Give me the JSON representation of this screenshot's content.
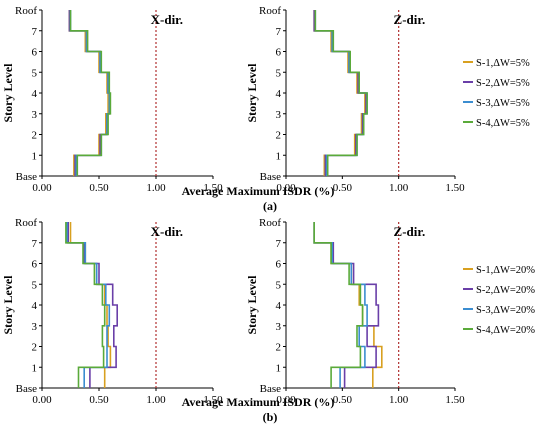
{
  "colors": {
    "S-1": "#d8a020",
    "S-2": "#6a3fa8",
    "S-3": "#3b8dd0",
    "S-4": "#5aaa3a",
    "limit": "#b03030"
  },
  "shared": {
    "xlabel": "Average Maximum ISDR (%)",
    "ylabel": "Story Level",
    "xticks": [
      "0.00",
      "0.50",
      "1.00",
      "1.50"
    ],
    "yticks": [
      "Base",
      "1",
      "2",
      "3",
      "4",
      "5",
      "6",
      "7",
      "Roof"
    ],
    "xlim": [
      0,
      1.5
    ],
    "ylim": [
      0,
      8
    ],
    "limit_x": 1.0
  },
  "panel_labels": {
    "a": "(a)",
    "b": "(b)"
  },
  "chart_data": [
    {
      "type": "line",
      "panel": "a",
      "direction": "X-dir.",
      "series": [
        {
          "name": "S-1,ΔW=5%",
          "values": [
            0.28,
            0.5,
            0.56,
            0.58,
            0.57,
            0.5,
            0.38,
            0.24
          ]
        },
        {
          "name": "S-2,ΔW=5%",
          "values": [
            0.29,
            0.51,
            0.57,
            0.59,
            0.58,
            0.51,
            0.39,
            0.24
          ]
        },
        {
          "name": "S-3,ΔW=5%",
          "values": [
            0.3,
            0.52,
            0.57,
            0.59,
            0.58,
            0.51,
            0.39,
            0.25
          ]
        },
        {
          "name": "S-4,ΔW=5%",
          "values": [
            0.31,
            0.52,
            0.58,
            0.6,
            0.59,
            0.52,
            0.4,
            0.25
          ]
        }
      ]
    },
    {
      "type": "line",
      "panel": "a",
      "direction": "Z-dir.",
      "series": [
        {
          "name": "S-1,ΔW=5%",
          "values": [
            0.34,
            0.61,
            0.67,
            0.7,
            0.63,
            0.55,
            0.4,
            0.25
          ]
        },
        {
          "name": "S-2,ΔW=5%",
          "values": [
            0.35,
            0.62,
            0.68,
            0.71,
            0.64,
            0.56,
            0.41,
            0.25
          ]
        },
        {
          "name": "S-3,ΔW=5%",
          "values": [
            0.36,
            0.63,
            0.69,
            0.72,
            0.65,
            0.56,
            0.41,
            0.26
          ]
        },
        {
          "name": "S-4,ΔW=5%",
          "values": [
            0.37,
            0.63,
            0.69,
            0.72,
            0.65,
            0.57,
            0.42,
            0.26
          ]
        }
      ]
    },
    {
      "type": "line",
      "panel": "b",
      "direction": "X-dir.",
      "series": [
        {
          "name": "S-1,ΔW=20%",
          "values": [
            0.55,
            0.6,
            0.58,
            0.57,
            0.55,
            0.48,
            0.38,
            0.25
          ]
        },
        {
          "name": "S-2,ΔW=20%",
          "values": [
            0.42,
            0.65,
            0.63,
            0.66,
            0.62,
            0.5,
            0.37,
            0.23
          ]
        },
        {
          "name": "S-3,ΔW=20%",
          "values": [
            0.37,
            0.57,
            0.57,
            0.59,
            0.56,
            0.48,
            0.38,
            0.22
          ]
        },
        {
          "name": "S-4,ΔW=20%",
          "values": [
            0.32,
            0.54,
            0.53,
            0.55,
            0.53,
            0.46,
            0.36,
            0.21
          ]
        }
      ]
    },
    {
      "type": "line",
      "panel": "b",
      "direction": "Z-dir.",
      "series": [
        {
          "name": "S-1,ΔW=20%",
          "values": [
            0.77,
            0.85,
            0.78,
            0.68,
            0.65,
            0.58,
            0.4,
            0.25
          ]
        },
        {
          "name": "S-2,ΔW=20%",
          "values": [
            0.52,
            0.8,
            0.72,
            0.82,
            0.8,
            0.6,
            0.42,
            0.25
          ]
        },
        {
          "name": "S-3,ΔW=20%",
          "values": [
            0.48,
            0.7,
            0.65,
            0.72,
            0.7,
            0.58,
            0.41,
            0.25
          ]
        },
        {
          "name": "S-4,ΔW=20%",
          "values": [
            0.4,
            0.66,
            0.63,
            0.68,
            0.66,
            0.56,
            0.4,
            0.25
          ]
        }
      ]
    }
  ]
}
